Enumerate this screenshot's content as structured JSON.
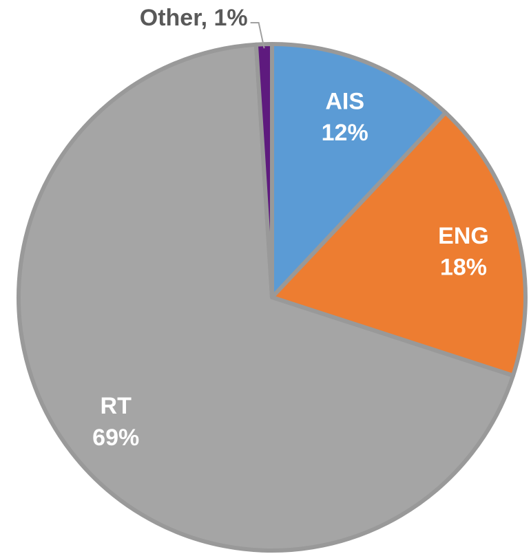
{
  "chart_data": {
    "type": "pie",
    "categories": [
      "AIS",
      "ENG",
      "RT",
      "Other"
    ],
    "values": [
      12,
      18,
      69,
      1
    ],
    "value_labels": [
      "12%",
      "18%",
      "69%",
      "1%"
    ],
    "colors": [
      "#5b9bd5",
      "#ed7d31",
      "#a5a5a5",
      "#5e1a7e"
    ]
  }
}
